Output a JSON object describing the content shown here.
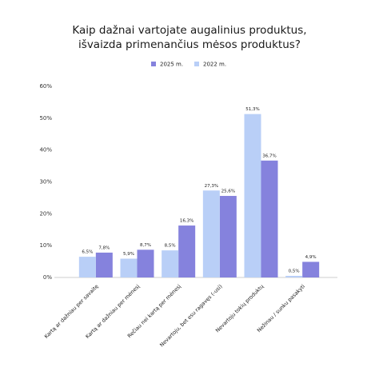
{
  "chart_data": {
    "type": "bar",
    "title": [
      "Kaip dažnai vartojate augalinius produktus,",
      "išvaizda primenančius mėsos produktus?"
    ],
    "categories": [
      "Kartą ar dažniau per savaitę",
      "Kartą ar dažniau per mėnesį",
      "Rečiau nei kartą per mėnesį",
      "Nevartoju, bet esu ragavęs (-usi)",
      "Nevartoju tokių produktų",
      "Nežinau / sunku pasakyti"
    ],
    "series": [
      {
        "name": "2025 m.",
        "color": "#8582dd",
        "values": [
          7.8,
          8.7,
          16.3,
          25.6,
          36.7,
          4.9
        ],
        "value_labels": [
          "7,8%",
          "8,7%",
          "16,3%",
          "25,6%",
          "36,7%",
          "4,9%"
        ]
      },
      {
        "name": "2022 m.",
        "color": "#b9cff7",
        "values": [
          6.5,
          5.9,
          8.5,
          27.3,
          51.3,
          0.5
        ],
        "value_labels": [
          "6,5%",
          "5,9%",
          "8,5%",
          "27,3%",
          "51,3%",
          "0,5%"
        ]
      }
    ],
    "ylim": [
      0,
      60
    ],
    "yticks": [
      {
        "value": 0,
        "label": "0%"
      },
      {
        "value": 10,
        "label": "10%"
      },
      {
        "value": 20,
        "label": "20%"
      },
      {
        "value": 30,
        "label": "30%"
      },
      {
        "value": 40,
        "label": "40%"
      },
      {
        "value": 50,
        "label": "50%"
      },
      {
        "value": 60,
        "label": "60%"
      }
    ],
    "grid": false
  }
}
